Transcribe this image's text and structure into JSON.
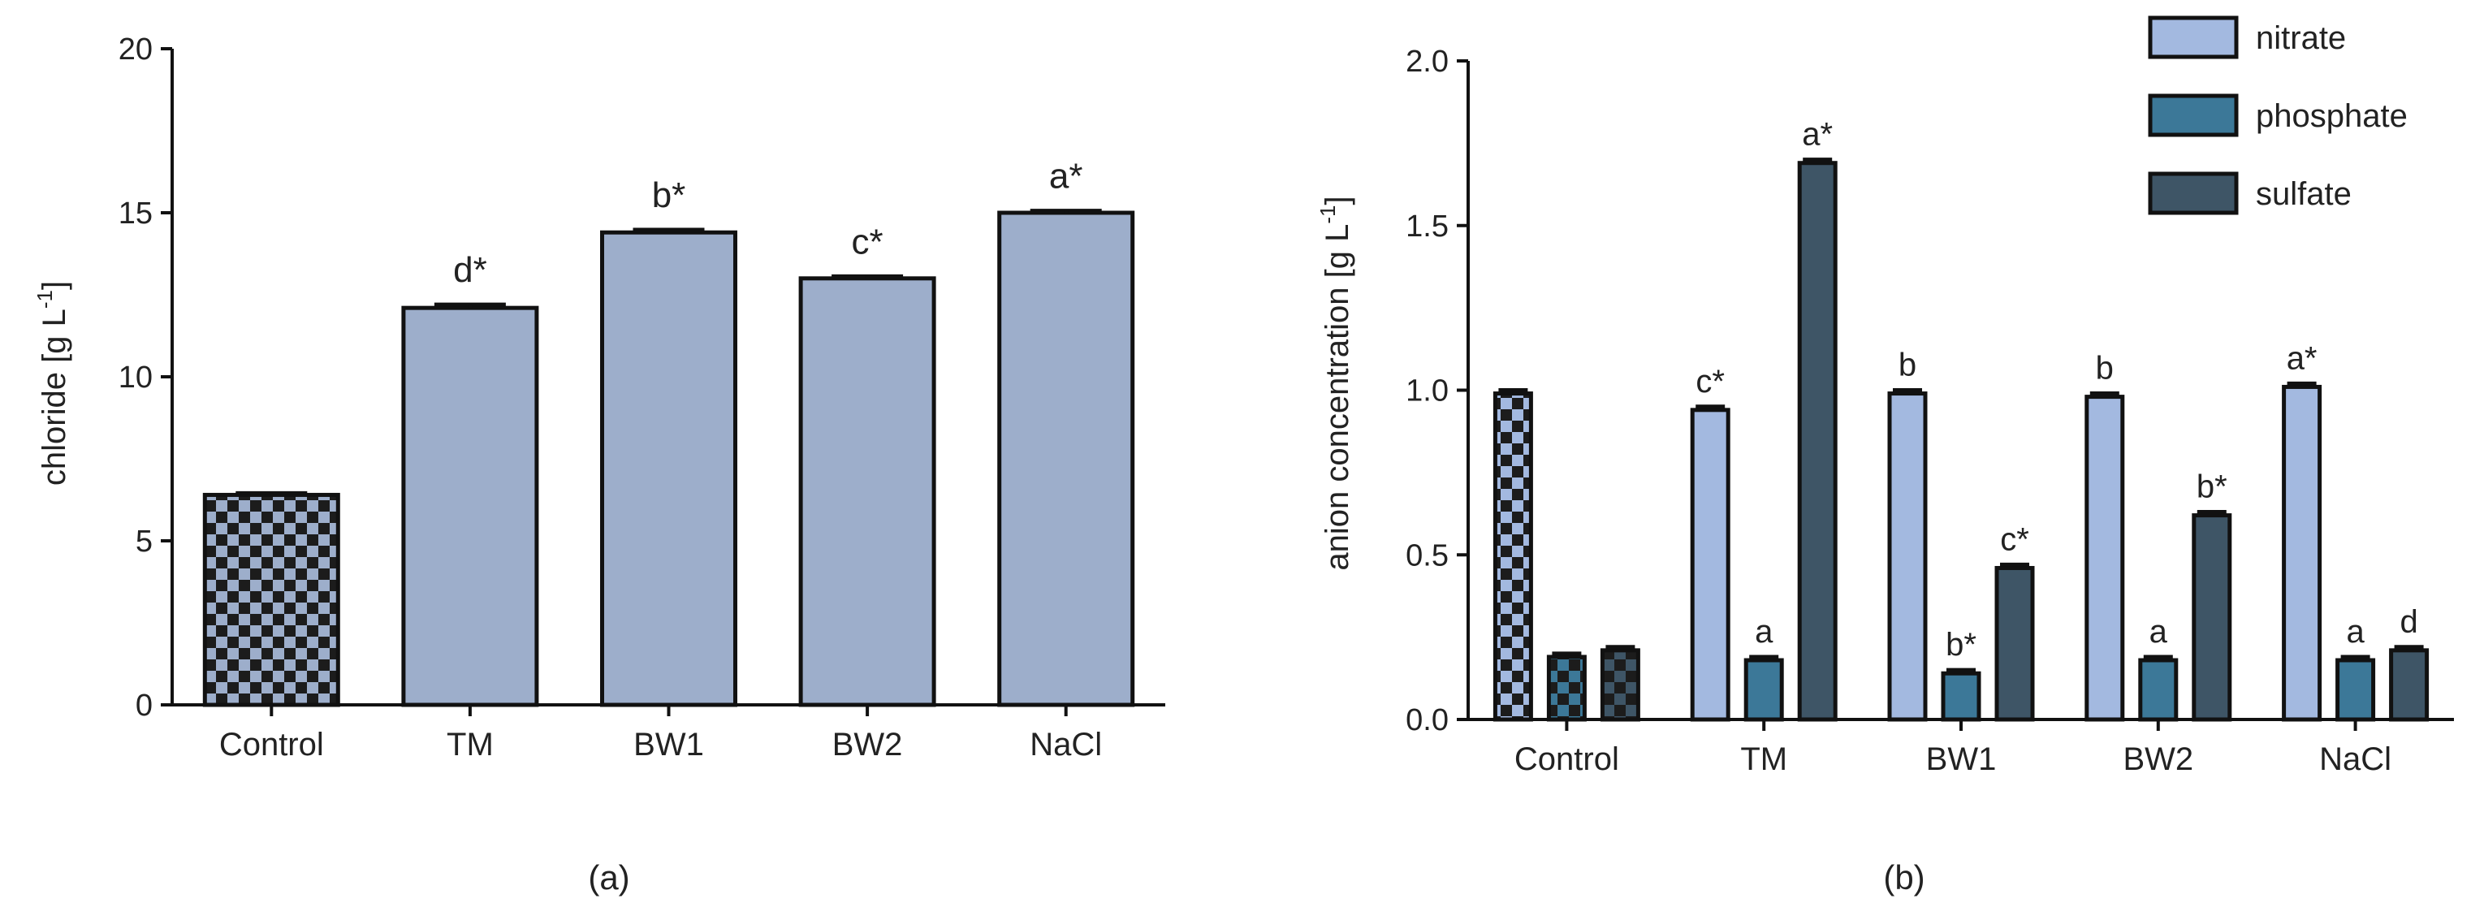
{
  "chart_data": [
    {
      "type": "bar",
      "panel_label": "(a)",
      "ylabel": "chloride [g L",
      "ylabel_sup": "-1",
      "ylabel_end": "]",
      "ylim": [
        0,
        20
      ],
      "yticks": [
        0,
        5,
        10,
        15,
        20
      ],
      "ytick_labels": [
        "0",
        "5",
        "10",
        "15",
        "20"
      ],
      "categories": [
        "Control",
        "TM",
        "BW1",
        "BW2",
        "NaCl"
      ],
      "values": [
        6.4,
        12.1,
        14.4,
        13.0,
        15.0
      ],
      "errors": [
        0.05,
        0.1,
        0.08,
        0.06,
        0.06
      ],
      "significance": [
        "",
        "d*",
        "b*",
        "c*",
        "a*"
      ],
      "control_pattern": "checkered",
      "colors": {
        "bar": "#9DAECB"
      }
    },
    {
      "type": "bar",
      "panel_label": "(b)",
      "ylabel": "anion concentration [g L",
      "ylabel_sup": "-1",
      "ylabel_end": "]",
      "ylim": [
        0,
        2.0
      ],
      "yticks": [
        0,
        0.5,
        1.0,
        1.5,
        2.0
      ],
      "ytick_labels": [
        "0.0",
        "0.5",
        "1.0",
        "1.5",
        "2.0"
      ],
      "categories": [
        "Control",
        "TM",
        "BW1",
        "BW2",
        "NaCl"
      ],
      "legend_position": "top-right",
      "series": [
        {
          "name": "nitrate",
          "color": "#A3B9E0",
          "values": [
            0.99,
            0.94,
            0.99,
            0.98,
            1.01
          ],
          "errors": [
            0.01,
            0.01,
            0.01,
            0.01,
            0.01
          ],
          "significance": [
            "",
            "c*",
            "b",
            "b",
            "a*"
          ]
        },
        {
          "name": "phosphate",
          "color": "#3C7898",
          "values": [
            0.19,
            0.18,
            0.14,
            0.18,
            0.18
          ],
          "errors": [
            0.01,
            0.01,
            0.01,
            0.01,
            0.01
          ],
          "significance": [
            "",
            "a",
            "b*",
            "a",
            "a"
          ]
        },
        {
          "name": "sulfate",
          "color": "#3E5566",
          "values": [
            0.21,
            1.69,
            0.46,
            0.62,
            0.21
          ],
          "errors": [
            0.01,
            0.01,
            0.01,
            0.01,
            0.01
          ],
          "significance": [
            "",
            "a*",
            "c*",
            "b*",
            "d"
          ]
        }
      ],
      "control_pattern": "checkered"
    }
  ]
}
